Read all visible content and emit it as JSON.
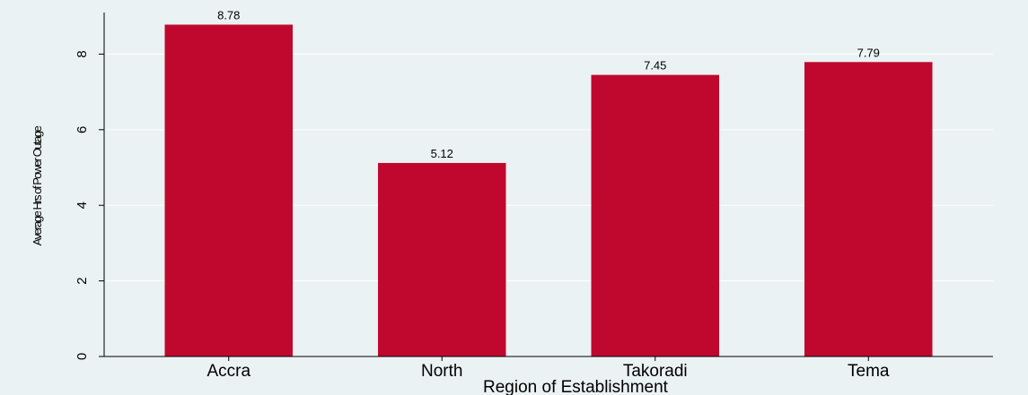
{
  "chart_data": {
    "type": "bar",
    "categories": [
      "Accra",
      "North",
      "Takoradi",
      "Tema"
    ],
    "values": [
      8.78,
      5.12,
      7.45,
      7.79
    ],
    "data_labels": [
      "8.78",
      "5.12",
      "7.45",
      "7.79"
    ],
    "title": "",
    "xlabel": "Region of Establishment",
    "ylabel": "Average Hrs of Power Outage",
    "ylim": [
      0,
      9.1
    ],
    "yticks": [
      0,
      2,
      4,
      6,
      8
    ],
    "grid": true,
    "legend": "none",
    "bar_color": "#c0082f",
    "background_color": "#eaf2f3",
    "grid_color": "#ffffff"
  }
}
